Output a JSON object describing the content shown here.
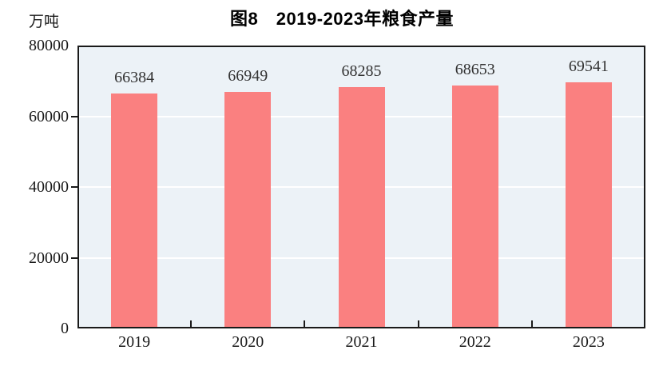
{
  "header": {
    "title": "图8　2019-2023年粮食产量",
    "unit_label": "万吨"
  },
  "chart_data": {
    "type": "bar",
    "title": "图8　2019-2023年粮食产量",
    "ylabel": "万吨",
    "xlabel": "",
    "categories": [
      "2019",
      "2020",
      "2021",
      "2022",
      "2023"
    ],
    "values": [
      66384,
      66949,
      68285,
      68653,
      69541
    ],
    "value_labels": [
      "66384",
      "66949",
      "68285",
      "68653",
      "69541"
    ],
    "ylim": [
      0,
      80000
    ],
    "yticks": [
      0,
      20000,
      40000,
      60000,
      80000
    ],
    "grid": true,
    "legend": "none",
    "bar_color": "#fa8080",
    "plot_bg_color": "#ecf2f7",
    "gridline_color": "#ffffff",
    "axis_color": "#1a1a1a",
    "value_label_color": "#333333"
  }
}
